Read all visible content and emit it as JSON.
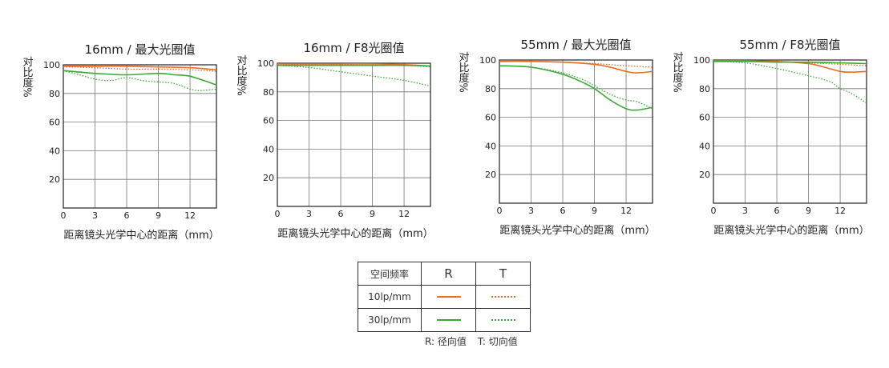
{
  "colors": {
    "r": "#ec6b23",
    "t": "#3aaa35",
    "grid": "#777777",
    "axis": "#222222"
  },
  "chart_data": [
    {
      "type": "line",
      "title": "16mm / 最大光圈值",
      "ylabel": "对比度%",
      "xlabel": "距离镜头光学中心的距离（mm）",
      "xlim": [
        0,
        14.5
      ],
      "ylim": [
        0,
        100
      ],
      "xticks": [
        0,
        3,
        6,
        9,
        12
      ],
      "yticks": [
        20,
        40,
        60,
        80,
        100
      ],
      "series": [
        {
          "name": "10lp/mm R",
          "x": [
            0,
            3,
            6,
            9,
            12,
            14.5
          ],
          "y": [
            99,
            99,
            99,
            98.5,
            98,
            96.5
          ]
        },
        {
          "name": "10lp/mm T",
          "x": [
            0,
            3,
            6,
            9,
            12,
            14.5
          ],
          "y": [
            98.5,
            98,
            97,
            97,
            96.5,
            95.5
          ]
        },
        {
          "name": "30lp/mm R",
          "x": [
            0,
            3,
            6,
            9,
            10.5,
            12,
            14.5
          ],
          "y": [
            96,
            94,
            93,
            94,
            93,
            92,
            86
          ]
        },
        {
          "name": "30lp/mm T",
          "x": [
            0,
            1.5,
            3,
            4.5,
            6,
            7.5,
            9,
            10.5,
            12,
            13,
            14.5
          ],
          "y": [
            96,
            93,
            90,
            89,
            91,
            89,
            88,
            87,
            83,
            82,
            83
          ]
        }
      ]
    },
    {
      "type": "line",
      "title": "16mm / F8光圈值",
      "ylabel": "对比度%",
      "xlabel": "距离镜头光学中心的距离（mm）",
      "xlim": [
        0,
        14.5
      ],
      "ylim": [
        0,
        100
      ],
      "xticks": [
        0,
        3,
        6,
        9,
        12
      ],
      "yticks": [
        20,
        40,
        60,
        80,
        100
      ],
      "series": [
        {
          "name": "10lp/mm R",
          "x": [
            0,
            3,
            6,
            9,
            12,
            14.5
          ],
          "y": [
            99.5,
            99.5,
            99.5,
            99.5,
            99,
            98
          ]
        },
        {
          "name": "10lp/mm T",
          "x": [
            0,
            3,
            6,
            9,
            12,
            14.5
          ],
          "y": [
            99.5,
            99,
            99,
            98.5,
            98.5,
            97.5
          ]
        },
        {
          "name": "30lp/mm R",
          "x": [
            0,
            3,
            6,
            9,
            12,
            14.5
          ],
          "y": [
            98.5,
            98.5,
            98.5,
            98.5,
            98.5,
            98
          ]
        },
        {
          "name": "30lp/mm T",
          "x": [
            0,
            3,
            6,
            9,
            12,
            14.5
          ],
          "y": [
            98.5,
            97,
            94,
            91,
            88,
            84
          ]
        }
      ]
    },
    {
      "type": "line",
      "title": "55mm / 最大光圈值",
      "ylabel": "对比度%",
      "xlabel": "距离镜头光学中心的距离（mm）",
      "xlim": [
        0,
        14.5
      ],
      "ylim": [
        0,
        100
      ],
      "xticks": [
        0,
        3,
        6,
        9,
        12
      ],
      "yticks": [
        20,
        40,
        60,
        80,
        100
      ],
      "series": [
        {
          "name": "10lp/mm R",
          "x": [
            0,
            3,
            6,
            9,
            10.5,
            12,
            13,
            14.5
          ],
          "y": [
            99,
            99,
            98.5,
            97,
            95,
            92,
            91,
            92
          ]
        },
        {
          "name": "10lp/mm T",
          "x": [
            0,
            3,
            6,
            9,
            12,
            14.5
          ],
          "y": [
            99,
            99,
            98.5,
            97.5,
            96,
            95
          ]
        },
        {
          "name": "30lp/mm R",
          "x": [
            0,
            3,
            6,
            8,
            9,
            10.5,
            12,
            13,
            14.5
          ],
          "y": [
            96,
            95,
            90,
            84,
            80,
            72,
            66,
            65,
            67
          ]
        },
        {
          "name": "30lp/mm T",
          "x": [
            0,
            3,
            6,
            8,
            9,
            10.5,
            12,
            13,
            14.5
          ],
          "y": [
            96,
            95,
            91,
            86,
            82,
            76,
            72,
            71,
            66
          ]
        }
      ]
    },
    {
      "type": "line",
      "title": "55mm / F8光圈值",
      "ylabel": "对比度%",
      "xlabel": "距离镜头光学中心的距离（mm）",
      "xlim": [
        0,
        14.5
      ],
      "ylim": [
        0,
        100
      ],
      "xticks": [
        0,
        3,
        6,
        9,
        12
      ],
      "yticks": [
        20,
        40,
        60,
        80,
        100
      ],
      "series": [
        {
          "name": "10lp/mm R",
          "x": [
            0,
            3,
            6,
            9,
            10.5,
            12,
            13,
            14.5
          ],
          "y": [
            99.5,
            99.5,
            99,
            97.5,
            95,
            92,
            91.5,
            92
          ]
        },
        {
          "name": "10lp/mm T",
          "x": [
            0,
            3,
            6,
            9,
            12,
            14.5
          ],
          "y": [
            99.5,
            99.5,
            99,
            98,
            97,
            96
          ]
        },
        {
          "name": "30lp/mm R",
          "x": [
            0,
            3,
            6,
            9,
            12,
            14.5
          ],
          "y": [
            99,
            99,
            98.5,
            98.5,
            98,
            97.5
          ]
        },
        {
          "name": "30lp/mm T",
          "x": [
            0,
            3,
            6,
            9,
            11,
            12,
            13,
            14.5
          ],
          "y": [
            99,
            98,
            94,
            89,
            85,
            80,
            77,
            70
          ]
        }
      ]
    }
  ],
  "legend": {
    "header": "空间频率",
    "col_r": "R",
    "col_t": "T",
    "row_10": "10lp/mm",
    "row_30": "30lp/mm",
    "note_r": "R: 径向值",
    "note_t": "T: 切向值"
  }
}
